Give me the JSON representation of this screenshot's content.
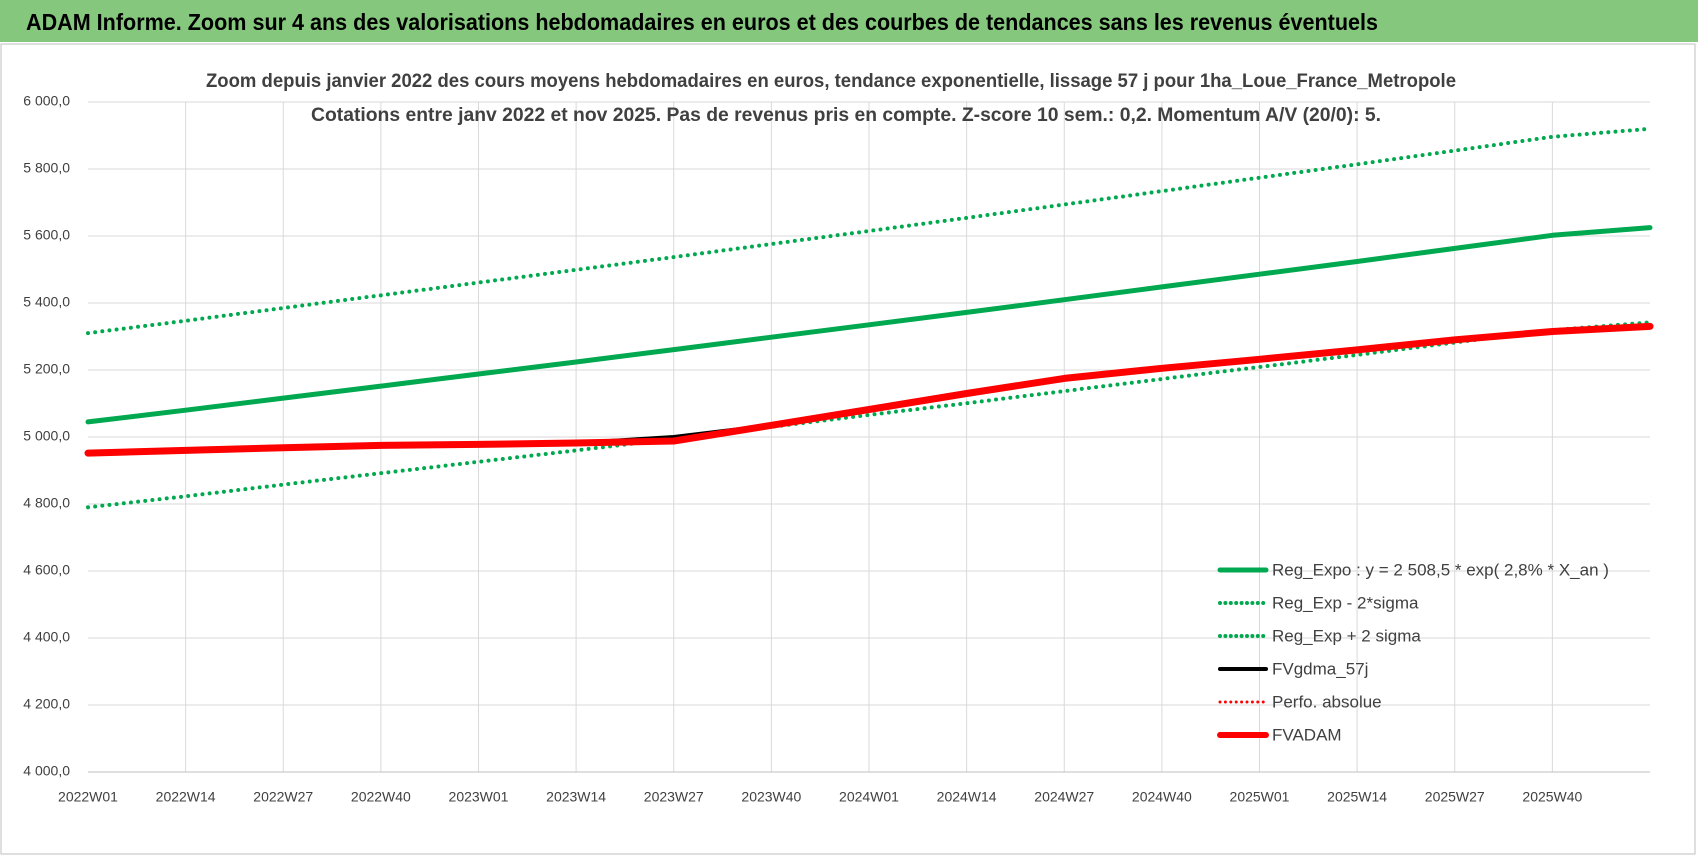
{
  "chart_data": {
    "type": "line",
    "header": "ADAM Informe. Zoom sur 4 ans des valorisations hebdomadaires en euros et des courbes de tendances sans les revenus éventuels",
    "title": "Zoom depuis janvier 2022 des cours moyens hebdomadaires en euros, tendance exponentielle, lissage 57 j pour 1ha_Loue_France_Metropole",
    "subtitle": "Cotations entre janv 2022 et nov 2025. Pas de revenus pris en compte. Z-score 10 sem.: 0,2. Momentum A/V (20/0): 5.",
    "categories": [
      "2022W01",
      "2022W14",
      "2022W27",
      "2022W40",
      "2023W01",
      "2023W14",
      "2023W27",
      "2023W40",
      "2024W01",
      "2024W14",
      "2024W27",
      "2024W40",
      "2025W01",
      "2025W14",
      "2025W27",
      "2025W40",
      null
    ],
    "series": [
      {
        "name": "Reg_Expo : y = 2 508,5 * exp( 2,8% *  X_an )",
        "color": "#00a84f",
        "style": "solid",
        "width": 5,
        "values": [
          5045,
          5080,
          5116,
          5152,
          5188,
          5224,
          5261,
          5298,
          5335,
          5372,
          5410,
          5448,
          5486,
          5524,
          5563,
          5602,
          5625
        ]
      },
      {
        "name": "Reg_Exp - 2*sigma",
        "color": "#00a84f",
        "style": "dotted",
        "width": 4,
        "values": [
          4790,
          4823,
          4858,
          4892,
          4926,
          4960,
          4995,
          5030,
          5066,
          5101,
          5137,
          5173,
          5209,
          5245,
          5282,
          5319,
          5342
        ]
      },
      {
        "name": "Reg_Exp + 2 sigma",
        "color": "#00a84f",
        "style": "dotted",
        "width": 4,
        "values": [
          5310,
          5347,
          5385,
          5423,
          5461,
          5499,
          5537,
          5576,
          5615,
          5654,
          5694,
          5734,
          5774,
          5814,
          5855,
          5896,
          5920
        ]
      },
      {
        "name": "FVgdma_57j",
        "color": "#000000",
        "style": "solid",
        "width": 4,
        "values": [
          4952,
          4960,
          4968,
          4975,
          4978,
          4982,
          5000,
          5035,
          5082,
          5130,
          5175,
          5205,
          5232,
          5260,
          5290,
          5315,
          5330
        ]
      },
      {
        "name": "Perfo. absolue",
        "color": "#ff0000",
        "style": "dotted",
        "width": 3,
        "values": [
          4952,
          4960,
          4968,
          4975,
          4978,
          4982,
          4988,
          5035,
          5082,
          5130,
          5175,
          5205,
          5232,
          5260,
          5290,
          5315,
          5330
        ]
      },
      {
        "name": "FVADAM",
        "color": "#ff0000",
        "style": "solid",
        "width": 7,
        "values": [
          4952,
          4960,
          4968,
          4975,
          4978,
          4982,
          4988,
          5035,
          5082,
          5130,
          5175,
          5205,
          5232,
          5260,
          5290,
          5315,
          5330
        ]
      }
    ],
    "ylim": [
      4000,
      6000
    ],
    "yticks": [
      {
        "value": 4000,
        "label": "4 000,0"
      },
      {
        "value": 4200,
        "label": "4 200,0"
      },
      {
        "value": 4400,
        "label": "4 400,0"
      },
      {
        "value": 4600,
        "label": "4 600,0"
      },
      {
        "value": 4800,
        "label": "4 800,0"
      },
      {
        "value": 5000,
        "label": "5 000,0"
      },
      {
        "value": 5200,
        "label": "5 200,0"
      },
      {
        "value": 5400,
        "label": "5 400,0"
      },
      {
        "value": 5600,
        "label": "5 600,0"
      },
      {
        "value": 5800,
        "label": "5 800,0"
      },
      {
        "value": 6000,
        "label": "6 000,0"
      }
    ],
    "grid": true,
    "legend": "bottom-right"
  }
}
